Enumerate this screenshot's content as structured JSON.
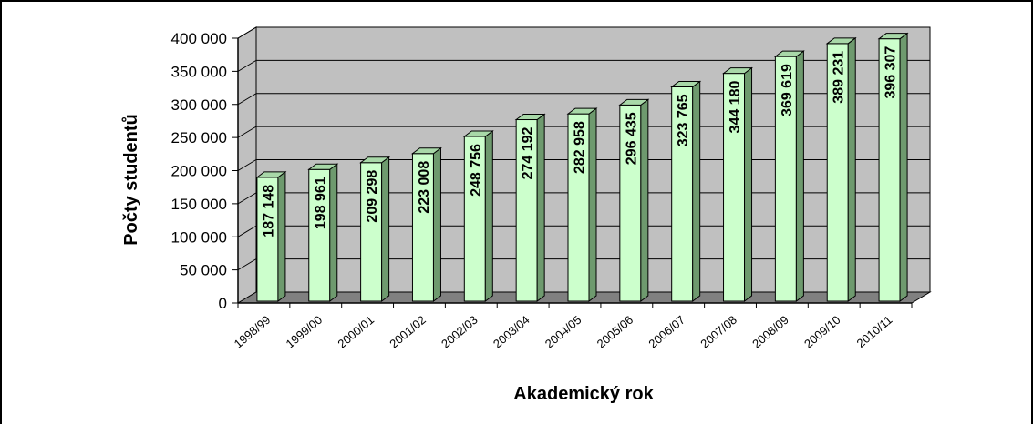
{
  "chart_data": {
    "type": "bar",
    "title": "",
    "xlabel": "Akademický rok",
    "ylabel": "Počty studentů",
    "ylim": [
      0,
      400000
    ],
    "ytick_step": 50000,
    "ytick_labels": [
      "0",
      "50 000",
      "100 000",
      "150 000",
      "200 000",
      "250 000",
      "300 000",
      "350 000",
      "400 000"
    ],
    "categories": [
      "1998/99",
      "1999/00",
      "2000/01",
      "2001/02",
      "2002/03",
      "2003/04",
      "2004/05",
      "2005/06",
      "2006/07",
      "2007/08",
      "2008/09",
      "2009/10",
      "2010/11"
    ],
    "values": [
      187148,
      198961,
      209298,
      223008,
      248756,
      274192,
      282958,
      296435,
      323765,
      344180,
      369619,
      389231,
      396307
    ],
    "value_labels": [
      "187 148",
      "198 961",
      "209 298",
      "223 008",
      "248 756",
      "274 192",
      "282 958",
      "296 435",
      "323 765",
      "344 180",
      "369 619",
      "389 231",
      "396 307"
    ],
    "grid": true,
    "legend": "none",
    "colors": {
      "bar_front": "#ccffcc",
      "bar_side": "#6e9a6e",
      "bar_top": "#a8d8a8",
      "bar_outline": "#000000",
      "back_wall": "#c0c0c0",
      "floor": "#808080"
    }
  }
}
